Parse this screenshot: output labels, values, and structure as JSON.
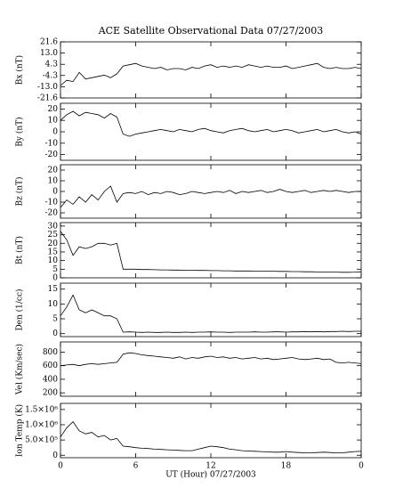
{
  "chart_data": {
    "type": "line",
    "title": "ACE Satellite Observational Data   07/27/2003",
    "xlabel": "UT (Hour)   07/27/2003",
    "xlim": [
      0,
      24
    ],
    "xticks": [
      0,
      6,
      12,
      18,
      {
        "value": 24,
        "label": "0"
      }
    ],
    "x": [
      0,
      0.5,
      1,
      1.5,
      2,
      2.5,
      3,
      3.5,
      4,
      4.5,
      5,
      5.5,
      6,
      6.5,
      7,
      7.5,
      8,
      8.5,
      9,
      9.5,
      10,
      10.5,
      11,
      11.5,
      12,
      12.5,
      13,
      13.5,
      14,
      14.5,
      15,
      15.5,
      16,
      16.5,
      17,
      17.5,
      18,
      18.5,
      19,
      19.5,
      20,
      20.5,
      21,
      21.5,
      22,
      22.5,
      23,
      23.5,
      24
    ],
    "color": "#000000",
    "panels": [
      {
        "ylabel": "Bx (nT)",
        "ylim": [
          -21.6,
          21.6
        ],
        "yticks": [
          -21.6,
          {
            "value": -13.0,
            "label": "-13.0"
          },
          -4.3,
          4.3,
          {
            "value": 13.0,
            "label": "13.0"
          },
          21.6
        ],
        "values": [
          -12,
          -8,
          -9,
          -2,
          -7,
          -6,
          -5,
          -4,
          -6,
          -3,
          3,
          4,
          5,
          3,
          2,
          1,
          2,
          0,
          1,
          1,
          0,
          2,
          1,
          3,
          4,
          2,
          3,
          2,
          3,
          2,
          4,
          3,
          2,
          3,
          2,
          2,
          3,
          1,
          2,
          3,
          4,
          5,
          2,
          1,
          2,
          1,
          1,
          2,
          1
        ]
      },
      {
        "ylabel": "By (nT)",
        "ylim": [
          -25,
          25
        ],
        "yticks": [
          -20,
          -10,
          0,
          10,
          20
        ],
        "values": [
          10,
          15,
          18,
          14,
          17,
          16,
          15,
          12,
          16,
          13,
          -2,
          -4,
          -2,
          -1,
          0,
          1,
          2,
          1,
          0,
          2,
          1,
          0,
          2,
          3,
          1,
          0,
          -1,
          1,
          2,
          3,
          1,
          0,
          1,
          2,
          0,
          1,
          2,
          1,
          -1,
          0,
          1,
          2,
          0,
          1,
          2,
          0,
          -1,
          0,
          -2
        ]
      },
      {
        "ylabel": "Bz (nT)",
        "ylim": [
          -25,
          25
        ],
        "yticks": [
          -20,
          -10,
          0,
          10,
          20
        ],
        "values": [
          -15,
          -8,
          -12,
          -5,
          -10,
          -3,
          -8,
          0,
          5,
          -10,
          -2,
          -1,
          -2,
          0,
          -3,
          -1,
          -2,
          0,
          -1,
          -3,
          -2,
          0,
          -1,
          -2,
          -1,
          0,
          -1,
          1,
          -2,
          0,
          -1,
          0,
          1,
          -1,
          0,
          2,
          0,
          -1,
          0,
          1,
          -1,
          0,
          1,
          0,
          1,
          0,
          -1,
          0,
          0
        ]
      },
      {
        "ylabel": "Bt (nT)",
        "ylim": [
          0,
          32
        ],
        "yticks": [
          0,
          5,
          10,
          15,
          20,
          25,
          30
        ],
        "values": [
          27,
          22,
          13,
          18,
          17,
          18,
          20,
          20,
          19,
          20,
          5,
          5,
          5,
          4.8,
          4.8,
          4.7,
          4.6,
          4.6,
          4.5,
          4.5,
          4.4,
          4.4,
          4.3,
          4.3,
          4.2,
          4.2,
          4.1,
          4.1,
          4,
          4,
          4,
          3.9,
          3.9,
          3.8,
          3.8,
          3.7,
          3.7,
          3.6,
          3.6,
          3.5,
          3.5,
          3.4,
          3.4,
          3.3,
          3.3,
          3.2,
          3.2,
          3.3,
          3.5
        ]
      },
      {
        "ylabel": "Den (1/cc)",
        "ylim": [
          -1,
          17
        ],
        "yticks": [
          0,
          5,
          10,
          15
        ],
        "values": [
          6,
          9,
          13,
          8,
          7,
          8,
          7,
          6,
          6,
          5,
          0.5,
          0.6,
          0.5,
          0.4,
          0.5,
          0.4,
          0.4,
          0.5,
          0.4,
          0.4,
          0.5,
          0.4,
          0.5,
          0.5,
          0.6,
          0.5,
          0.5,
          0.4,
          0.5,
          0.5,
          0.5,
          0.6,
          0.5,
          0.5,
          0.6,
          0.6,
          0.5,
          0.6,
          0.6,
          0.7,
          0.6,
          0.7,
          0.6,
          0.7,
          0.7,
          0.8,
          0.7,
          0.8,
          0.8
        ]
      },
      {
        "ylabel": "Vel (Km/sec)",
        "ylim": [
          150,
          950
        ],
        "yticks": [
          200,
          400,
          600,
          800
        ],
        "values": [
          600,
          610,
          620,
          600,
          620,
          630,
          620,
          630,
          640,
          650,
          770,
          790,
          780,
          760,
          750,
          740,
          730,
          720,
          710,
          730,
          700,
          720,
          710,
          730,
          740,
          720,
          730,
          710,
          720,
          700,
          710,
          720,
          700,
          710,
          690,
          700,
          710,
          720,
          700,
          690,
          700,
          710,
          690,
          700,
          650,
          640,
          650,
          640,
          630
        ]
      },
      {
        "ylabel": "Ion Temp (K)",
        "ylim": [
          -80000,
          1700000
        ],
        "yticks": [
          0,
          {
            "value": 500000,
            "label": "5.0×10⁵"
          },
          {
            "value": 1000000,
            "label": "1.0×10⁶"
          },
          {
            "value": 1500000,
            "label": "1.5×10⁶"
          }
        ],
        "values": [
          600000,
          900000,
          1100000,
          800000,
          700000,
          750000,
          600000,
          650000,
          500000,
          550000,
          300000,
          280000,
          250000,
          230000,
          220000,
          200000,
          190000,
          180000,
          170000,
          160000,
          150000,
          150000,
          200000,
          250000,
          300000,
          280000,
          250000,
          200000,
          180000,
          150000,
          140000,
          130000,
          120000,
          110000,
          100000,
          100000,
          120000,
          100000,
          90000,
          80000,
          80000,
          90000,
          100000,
          90000,
          80000,
          80000,
          100000,
          120000,
          130000
        ]
      }
    ]
  }
}
